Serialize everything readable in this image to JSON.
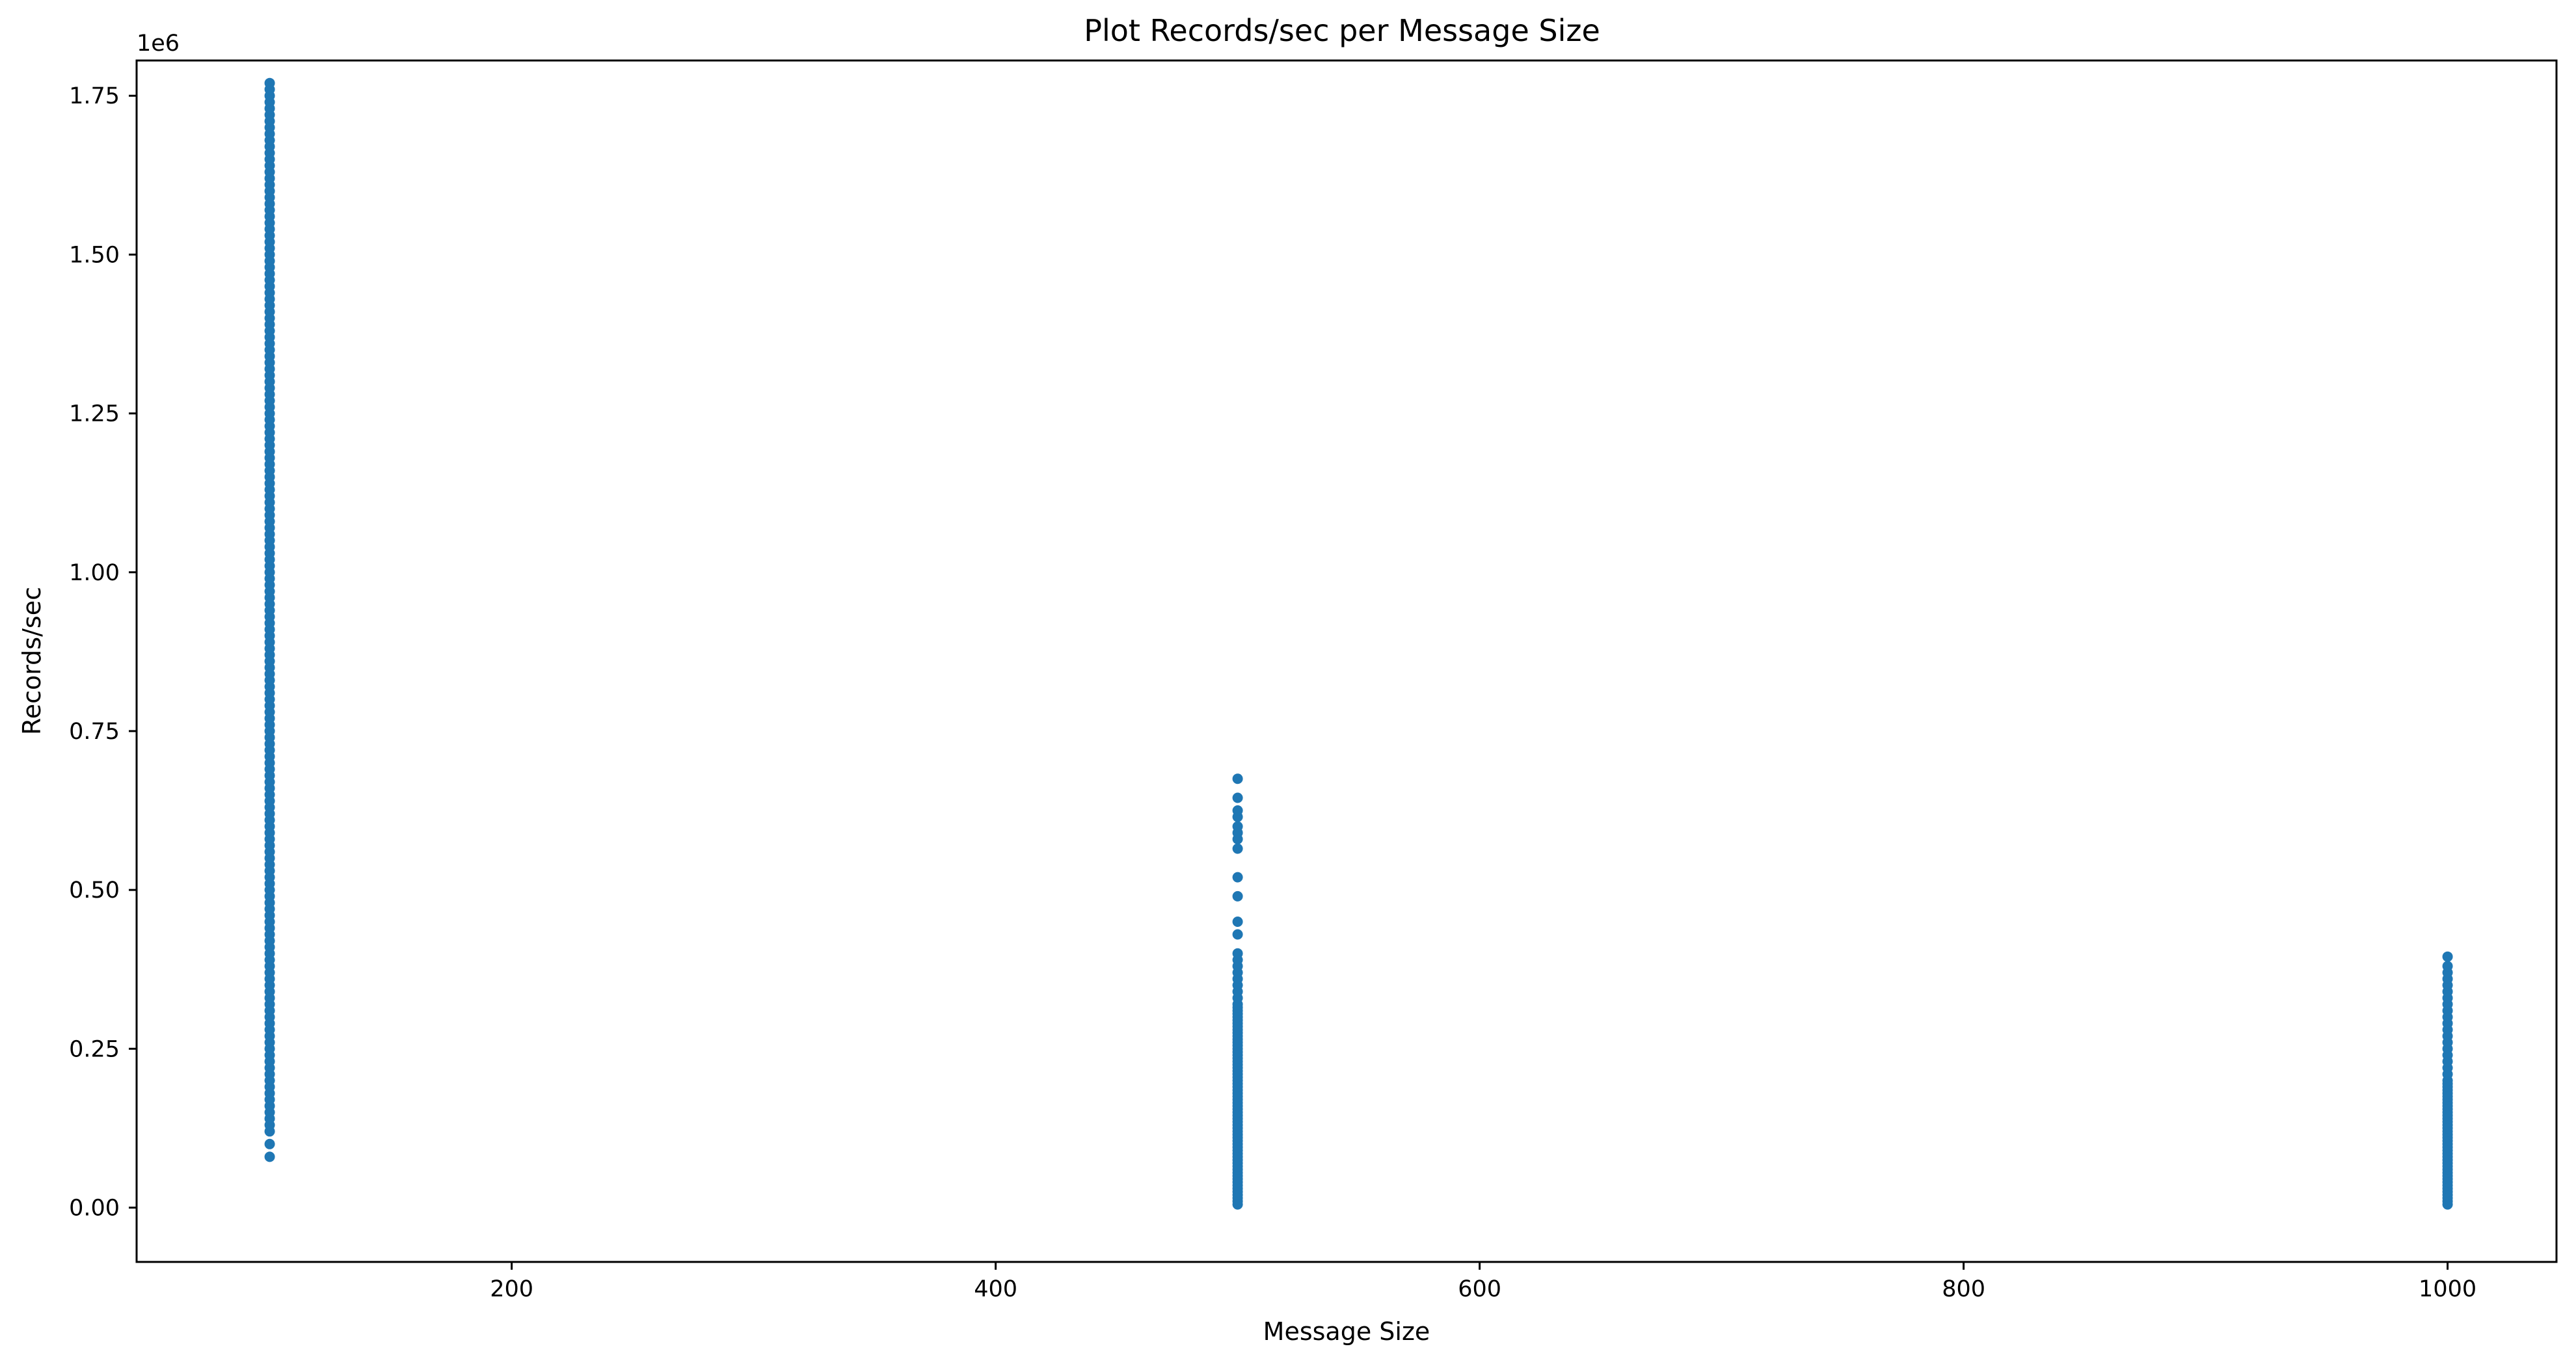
{
  "chart_data": {
    "type": "scatter",
    "title": "Plot Records/sec per Message Size",
    "xlabel": "Message Size",
    "ylabel": "Records/sec",
    "y_offset_label": "1e6",
    "xlim": [
      45,
      1045
    ],
    "ylim": [
      -0.0855,
      1.8055
    ],
    "xticks": [
      200,
      400,
      600,
      800,
      1000
    ],
    "xtick_labels": [
      "200",
      "400",
      "600",
      "800",
      "1000"
    ],
    "yticks": [
      0.0,
      0.25,
      0.5,
      0.75,
      1.0,
      1.25,
      1.5,
      1.75
    ],
    "ytick_labels": [
      "0.00",
      "0.25",
      "0.50",
      "0.75",
      "1.00",
      "1.25",
      "1.50",
      "1.75"
    ],
    "grid": false,
    "legend": "none",
    "marker_color": "#1f77b4",
    "series": [
      {
        "x_value": 100,
        "y_values": [
          0.08,
          0.1,
          0.12,
          0.13,
          0.14,
          0.15,
          0.16,
          0.17,
          0.18,
          0.19,
          0.2,
          0.21,
          0.22,
          0.23,
          0.24,
          0.25,
          0.26,
          0.27,
          0.28,
          0.29,
          0.3,
          0.31,
          0.32,
          0.33,
          0.34,
          0.35,
          0.36,
          0.37,
          0.38,
          0.39,
          0.4,
          0.41,
          0.42,
          0.43,
          0.44,
          0.45,
          0.46,
          0.47,
          0.48,
          0.49,
          0.5,
          0.51,
          0.52,
          0.53,
          0.54,
          0.55,
          0.56,
          0.57,
          0.58,
          0.59,
          0.6,
          0.61,
          0.62,
          0.63,
          0.64,
          0.65,
          0.66,
          0.67,
          0.68,
          0.69,
          0.7,
          0.71,
          0.72,
          0.73,
          0.74,
          0.75,
          0.76,
          0.77,
          0.78,
          0.79,
          0.8,
          0.81,
          0.82,
          0.83,
          0.84,
          0.85,
          0.86,
          0.87,
          0.88,
          0.89,
          0.9,
          0.91,
          0.92,
          0.93,
          0.94,
          0.95,
          0.96,
          0.97,
          0.98,
          0.99,
          1.0,
          1.01,
          1.02,
          1.03,
          1.04,
          1.05,
          1.06,
          1.07,
          1.08,
          1.09,
          1.1,
          1.11,
          1.12,
          1.13,
          1.14,
          1.15,
          1.16,
          1.17,
          1.18,
          1.19,
          1.2,
          1.21,
          1.22,
          1.23,
          1.24,
          1.25,
          1.26,
          1.27,
          1.28,
          1.29,
          1.3,
          1.31,
          1.32,
          1.33,
          1.34,
          1.35,
          1.36,
          1.37,
          1.38,
          1.39,
          1.4,
          1.41,
          1.42,
          1.43,
          1.44,
          1.45,
          1.46,
          1.47,
          1.48,
          1.49,
          1.5,
          1.51,
          1.52,
          1.53,
          1.54,
          1.55,
          1.56,
          1.57,
          1.58,
          1.59,
          1.6,
          1.61,
          1.62,
          1.63,
          1.64,
          1.65,
          1.66,
          1.67,
          1.68,
          1.69,
          1.7,
          1.71,
          1.72,
          1.73,
          1.74,
          1.75,
          1.76,
          1.77
        ]
      },
      {
        "x_value": 500,
        "y_values": [
          0.005,
          0.01,
          0.015,
          0.02,
          0.025,
          0.03,
          0.035,
          0.04,
          0.045,
          0.05,
          0.055,
          0.06,
          0.065,
          0.07,
          0.075,
          0.08,
          0.085,
          0.09,
          0.095,
          0.1,
          0.105,
          0.11,
          0.115,
          0.12,
          0.125,
          0.13,
          0.135,
          0.14,
          0.145,
          0.15,
          0.155,
          0.16,
          0.165,
          0.17,
          0.175,
          0.18,
          0.185,
          0.19,
          0.195,
          0.2,
          0.205,
          0.21,
          0.215,
          0.22,
          0.225,
          0.23,
          0.235,
          0.24,
          0.245,
          0.25,
          0.255,
          0.26,
          0.265,
          0.27,
          0.275,
          0.28,
          0.285,
          0.29,
          0.295,
          0.3,
          0.305,
          0.31,
          0.315,
          0.32,
          0.33,
          0.34,
          0.35,
          0.36,
          0.37,
          0.38,
          0.39,
          0.4,
          0.43,
          0.45,
          0.49,
          0.52,
          0.565,
          0.58,
          0.59,
          0.6,
          0.615,
          0.625,
          0.645,
          0.675
        ]
      },
      {
        "x_value": 1000,
        "y_values": [
          0.005,
          0.01,
          0.015,
          0.02,
          0.025,
          0.03,
          0.035,
          0.04,
          0.045,
          0.05,
          0.055,
          0.06,
          0.065,
          0.07,
          0.075,
          0.08,
          0.085,
          0.09,
          0.095,
          0.1,
          0.105,
          0.11,
          0.115,
          0.12,
          0.125,
          0.13,
          0.135,
          0.14,
          0.145,
          0.15,
          0.155,
          0.16,
          0.165,
          0.17,
          0.175,
          0.18,
          0.185,
          0.19,
          0.195,
          0.2,
          0.21,
          0.22,
          0.23,
          0.24,
          0.25,
          0.26,
          0.27,
          0.28,
          0.29,
          0.3,
          0.31,
          0.32,
          0.33,
          0.34,
          0.35,
          0.36,
          0.37,
          0.38,
          0.395
        ]
      }
    ]
  }
}
